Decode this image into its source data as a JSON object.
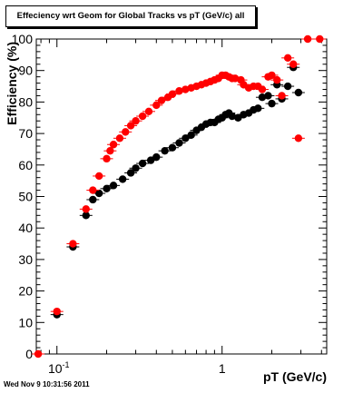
{
  "canvas": {
    "title": "Effeciency wrt Geom for Global Tracks vs pT (GeV/c) all",
    "timestamp": "Wed Nov  9 10:31:56 2011"
  },
  "chart_data": {
    "type": "scatter",
    "title": "Effeciency wrt Geom for Global Tracks vs pT (GeV/c) all",
    "xlabel": "pT (GeV/c)",
    "ylabel": "Efficiency (%)",
    "xscale": "log",
    "xlim": [
      0.075,
      4.3
    ],
    "ylim": [
      0,
      100
    ],
    "x_ticks": [
      {
        "value": 0.1,
        "base": "10",
        "exp": "-1"
      },
      {
        "value": 1,
        "base": "1",
        "exp": ""
      }
    ],
    "y_ticks": [
      0,
      10,
      20,
      30,
      40,
      50,
      60,
      70,
      80,
      90,
      100
    ],
    "grid": false,
    "legend": "none",
    "series": [
      {
        "color": "#000000",
        "values": [
          [
            0.1,
            12.5
          ],
          [
            0.125,
            34.0
          ],
          [
            0.15,
            44.0
          ],
          [
            0.165,
            49.0
          ],
          [
            0.18,
            51.0
          ],
          [
            0.2,
            52.5
          ],
          [
            0.22,
            53.5
          ],
          [
            0.25,
            55.5
          ],
          [
            0.28,
            57.5
          ],
          [
            0.3,
            59.0
          ],
          [
            0.33,
            60.5
          ],
          [
            0.37,
            61.5
          ],
          [
            0.4,
            62.5
          ],
          [
            0.45,
            64.5
          ],
          [
            0.5,
            65.5
          ],
          [
            0.55,
            67.0
          ],
          [
            0.6,
            68.5
          ],
          [
            0.65,
            69.5
          ],
          [
            0.7,
            71.0
          ],
          [
            0.75,
            72.0
          ],
          [
            0.8,
            73.0
          ],
          [
            0.85,
            73.5
          ],
          [
            0.9,
            73.5
          ],
          [
            0.95,
            74.5
          ],
          [
            1.0,
            75.0
          ],
          [
            1.05,
            76.0
          ],
          [
            1.1,
            76.5
          ],
          [
            1.15,
            75.5
          ],
          [
            1.25,
            75.0
          ],
          [
            1.35,
            76.0
          ],
          [
            1.45,
            76.5
          ],
          [
            1.55,
            77.5
          ],
          [
            1.65,
            78.0
          ],
          [
            1.75,
            81.5
          ],
          [
            1.9,
            82.0
          ],
          [
            2.0,
            79.5
          ],
          [
            2.15,
            85.5
          ],
          [
            2.3,
            81.0
          ],
          [
            2.5,
            85.0
          ],
          [
            2.7,
            91.0
          ],
          [
            2.9,
            83.0
          ]
        ]
      },
      {
        "color": "#ff0000",
        "values": [
          [
            0.077,
            0.0
          ],
          [
            0.1,
            13.5
          ],
          [
            0.125,
            35.0
          ],
          [
            0.15,
            46.0
          ],
          [
            0.165,
            52.0
          ],
          [
            0.18,
            56.5
          ],
          [
            0.2,
            62.0
          ],
          [
            0.21,
            64.5
          ],
          [
            0.22,
            66.5
          ],
          [
            0.24,
            68.5
          ],
          [
            0.26,
            70.5
          ],
          [
            0.28,
            72.5
          ],
          [
            0.3,
            74.0
          ],
          [
            0.33,
            75.5
          ],
          [
            0.36,
            77.0
          ],
          [
            0.4,
            79.0
          ],
          [
            0.43,
            80.5
          ],
          [
            0.47,
            81.5
          ],
          [
            0.5,
            82.5
          ],
          [
            0.55,
            83.5
          ],
          [
            0.6,
            84.0
          ],
          [
            0.65,
            84.5
          ],
          [
            0.7,
            85.0
          ],
          [
            0.75,
            85.5
          ],
          [
            0.8,
            86.0
          ],
          [
            0.85,
            86.5
          ],
          [
            0.9,
            87.0
          ],
          [
            0.95,
            87.5
          ],
          [
            1.0,
            88.5
          ],
          [
            1.05,
            88.5
          ],
          [
            1.1,
            88.0
          ],
          [
            1.15,
            87.5
          ],
          [
            1.2,
            87.5
          ],
          [
            1.3,
            87.0
          ],
          [
            1.35,
            85.5
          ],
          [
            1.45,
            84.5
          ],
          [
            1.55,
            85.0
          ],
          [
            1.65,
            85.0
          ],
          [
            1.75,
            84.0
          ],
          [
            1.9,
            88.0
          ],
          [
            2.0,
            88.5
          ],
          [
            2.15,
            87.0
          ],
          [
            2.3,
            82.0
          ],
          [
            2.5,
            94.0
          ],
          [
            2.7,
            92.0
          ],
          [
            2.9,
            68.5
          ],
          [
            3.3,
            100.0
          ],
          [
            3.9,
            100.0
          ]
        ]
      }
    ]
  }
}
